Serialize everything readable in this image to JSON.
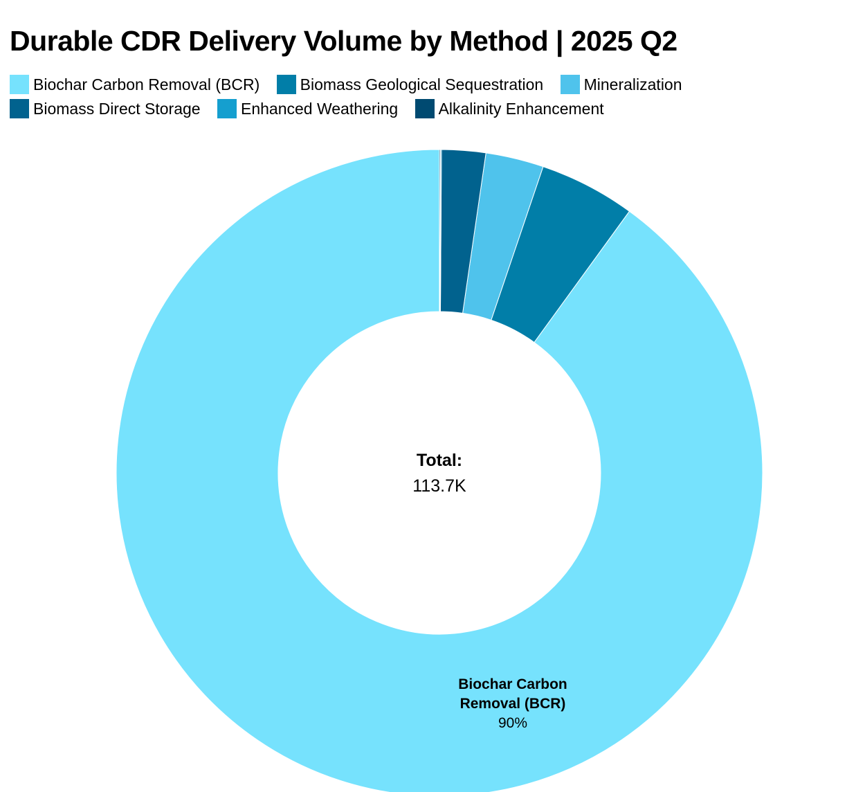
{
  "chart_data": {
    "type": "pie",
    "variant": "donut",
    "title": "Durable CDR Delivery Volume by Method | 2025 Q2",
    "categories": [
      "Biochar Carbon Removal (BCR)",
      "Biomass Geological Sequestration",
      "Mineralization",
      "Biomass Direct Storage",
      "Enhanced Weathering",
      "Alkalinity Enhancement"
    ],
    "values": [
      90.0,
      4.8,
      2.9,
      2.2,
      0.05,
      0.05
    ],
    "value_unit": "% of total",
    "colors": [
      "#76e2fd",
      "#017ea8",
      "#4fc3ec",
      "#01628e",
      "#159fcf",
      "#004a71"
    ],
    "legend_position": "top",
    "center_label": {
      "title": "Total:",
      "value": "113.7K"
    },
    "slice_labels": [
      {
        "category_index": 0,
        "name_lines": [
          "Biochar Carbon",
          "Removal (BCR)"
        ],
        "percent": "90%"
      }
    ]
  }
}
